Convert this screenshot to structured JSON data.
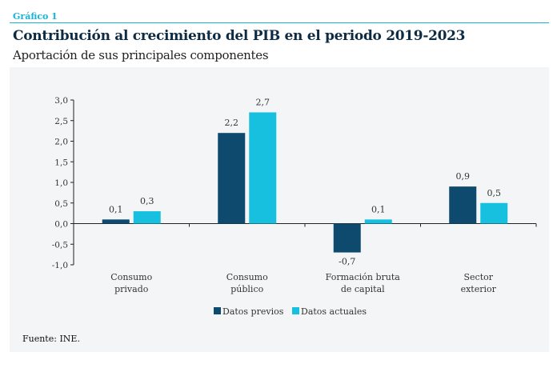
{
  "header": {
    "label": "Gráfico 1",
    "title": "Contribución al crecimiento del PIB en el periodo 2019-2023",
    "subtitle": "Aportación de sus principales componentes"
  },
  "source": "Fuente: INE.",
  "chart_data": {
    "type": "bar",
    "title": "",
    "xlabel": "",
    "ylabel": "",
    "categories": [
      [
        "Consumo",
        "privado"
      ],
      [
        "Consumo",
        "público"
      ],
      [
        "Formación bruta",
        "de capital"
      ],
      [
        "Sector",
        "exterior"
      ]
    ],
    "series": [
      {
        "name": "Datos previos",
        "values": [
          0.1,
          2.2,
          -0.7,
          0.9
        ],
        "color": "#0d4a6e"
      },
      {
        "name": "Datos actuales",
        "values": [
          0.3,
          2.7,
          0.1,
          0.5
        ],
        "color": "#18c0e0"
      }
    ],
    "ylim": [
      -1.0,
      3.0
    ],
    "yticks": [
      3.0,
      2.5,
      2.0,
      1.5,
      1.0,
      0.5,
      0.0,
      -0.5,
      -1.0
    ],
    "decimal": ",",
    "grid": false,
    "legend": "bottom"
  }
}
